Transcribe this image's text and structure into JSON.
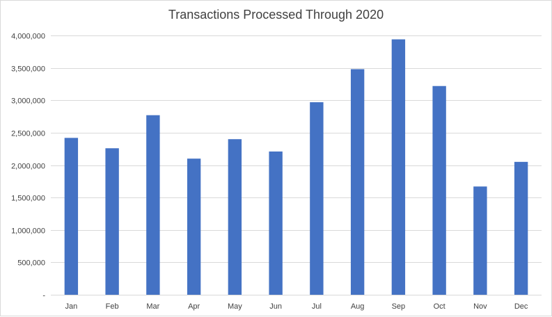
{
  "chart_data": {
    "type": "bar",
    "title": "Transactions Processed Through 2020",
    "xlabel": "",
    "ylabel": "",
    "categories": [
      "Jan",
      "Feb",
      "Mar",
      "Apr",
      "May",
      "Jun",
      "Jul",
      "Aug",
      "Sep",
      "Oct",
      "Nov",
      "Dec"
    ],
    "values": [
      2420000,
      2260000,
      2770000,
      2100000,
      2400000,
      2210000,
      2970000,
      3480000,
      3940000,
      3220000,
      1670000,
      2050000
    ],
    "ylim": [
      0,
      4000000
    ],
    "yticks": [
      0,
      500000,
      1000000,
      1500000,
      2000000,
      2500000,
      3000000,
      3500000,
      4000000
    ],
    "ytick_labels": [
      "-",
      "500,000",
      "1,000,000",
      "1,500,000",
      "2,000,000",
      "2,500,000",
      "3,000,000",
      "3,500,000",
      "4,000,000"
    ],
    "grid": true,
    "legend": "none",
    "bar_color": "#4472C4",
    "grid_color": "#d9d9d9"
  }
}
